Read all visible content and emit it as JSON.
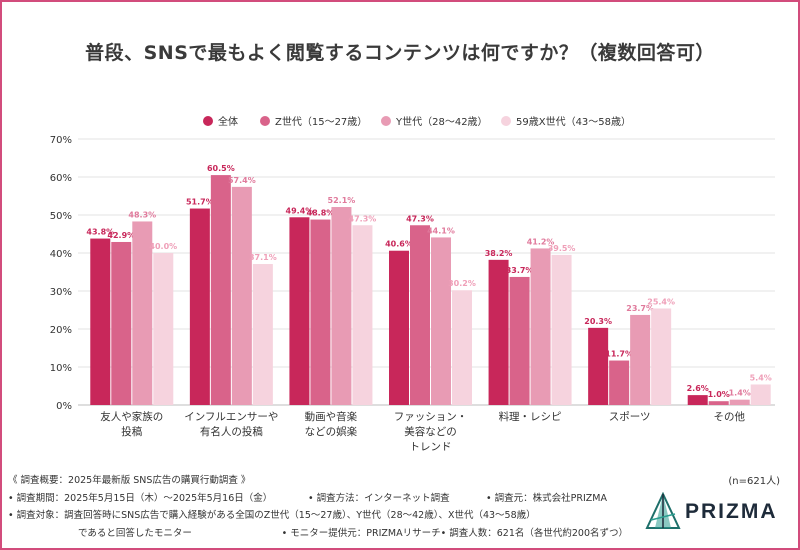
{
  "title": "普段、SNSで最もよく閲覧するコンテンツは何ですか？（複数回答可）",
  "colors": {
    "border": "#d24c7c",
    "series": [
      "#c8275a",
      "#d9638a",
      "#e89bb4",
      "#f6d3de"
    ],
    "label_colors": [
      "#c8275a",
      "#c8275a",
      "#e07a9c",
      "#ef9fb8"
    ],
    "grid": "#e3e3e3",
    "axis_text": "#333333"
  },
  "chart_data": {
    "type": "bar",
    "title": "普段、SNSで最もよく閲覧するコンテンツは何ですか？（複数回答可）",
    "categories": [
      [
        "友人や家族の",
        "投稿"
      ],
      [
        "インフルエンサーや",
        "有名人の投稿"
      ],
      [
        "動画や音楽",
        "などの娯楽"
      ],
      [
        "ファッション・",
        "美容などの",
        "トレンド"
      ],
      [
        "料理・レシピ"
      ],
      [
        "スポーツ"
      ],
      [
        "その他"
      ]
    ],
    "series": [
      {
        "name": "全体",
        "values": [
          43.8,
          51.7,
          49.4,
          40.6,
          38.2,
          20.3,
          2.6
        ]
      },
      {
        "name": "Z世代（15～27歳）",
        "values": [
          42.9,
          60.5,
          48.8,
          47.3,
          33.7,
          11.7,
          1.0
        ]
      },
      {
        "name": "Y世代（28～42歳）",
        "values": [
          48.3,
          57.4,
          52.1,
          44.1,
          41.2,
          23.7,
          1.4
        ]
      },
      {
        "name": "59歳X世代（43～58歳）",
        "values": [
          40.0,
          37.1,
          47.3,
          30.2,
          39.5,
          25.4,
          5.4
        ]
      }
    ],
    "yticks": [
      "0%",
      "10%",
      "20%",
      "30%",
      "40%",
      "50%",
      "60%",
      "70%"
    ],
    "ylim": [
      0,
      70
    ],
    "value_suffix": "%",
    "legend_position": "top-center",
    "grid": true
  },
  "notes": {
    "header": "《 調査概要：2025年最新版 SNS広告の購買行動調査 》",
    "period": "• 調査期間：2025年5月15日（木）～2025年5月16日（金）",
    "method": "• 調査方法：インターネット調査",
    "source": "• 調査元：株式会社PRIZMA",
    "target": "• 調査対象：調査回答時にSNS広告で購入経験がある全国のZ世代（15～27歳）、Y世代（28～42歳）、X世代（43～58歳）",
    "target_cont": "であると回答したモニター",
    "provider": "• モニター提供元：PRIZMAリサーチ",
    "count": "• 調査人数：621名（各世代約200名ずつ）"
  },
  "sample_size": "(n=621人)",
  "logo": {
    "text": "PRIZMA",
    "icon": "prizma-triangle-icon"
  }
}
